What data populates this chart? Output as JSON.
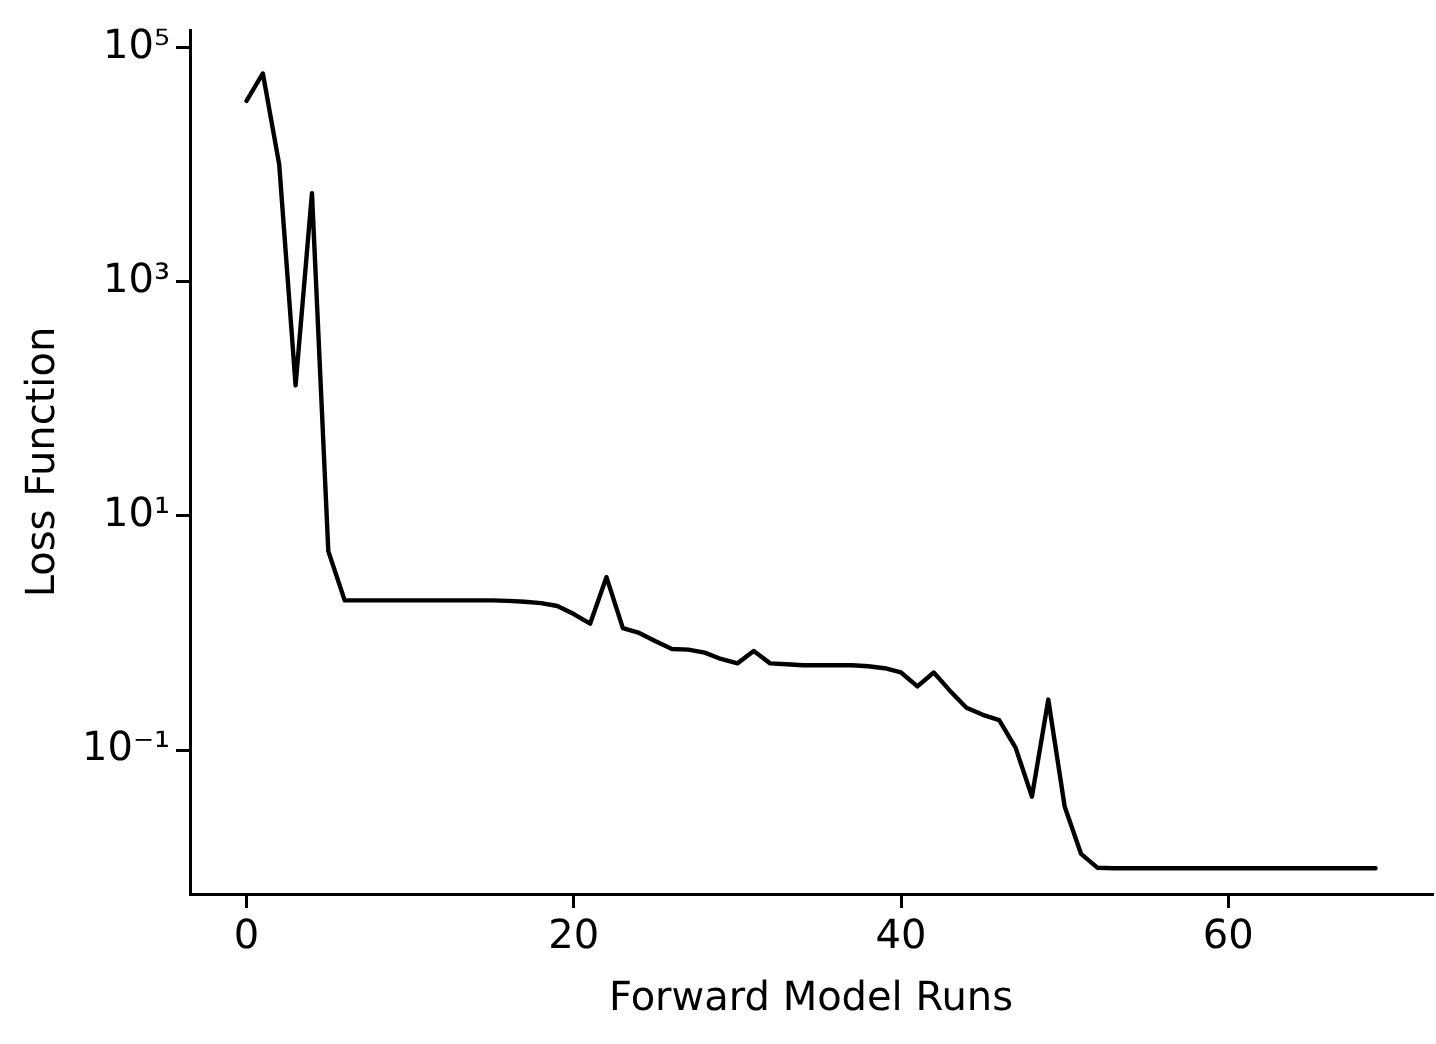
{
  "chart_data": {
    "type": "line",
    "xlabel": "Forward Model Runs",
    "ylabel": "Loss Function",
    "log": "y",
    "marker": "none",
    "line_style": "solid",
    "x": [
      0,
      1,
      2,
      3,
      4,
      5,
      6,
      7,
      8,
      9,
      10,
      11,
      12,
      13,
      14,
      15,
      16,
      17,
      18,
      19,
      20,
      21,
      22,
      23,
      24,
      25,
      26,
      27,
      28,
      29,
      30,
      31,
      32,
      33,
      34,
      35,
      36,
      37,
      38,
      39,
      40,
      41,
      42,
      43,
      44,
      45,
      46,
      47,
      48,
      49,
      50,
      51,
      52,
      53,
      54,
      55,
      56,
      57,
      58,
      59,
      60,
      61,
      62,
      63,
      64,
      65,
      66,
      67,
      68,
      69
    ],
    "series": [
      {
        "color": "#000000",
        "values": [
          35000,
          60000,
          10000,
          130,
          5700,
          5,
          1.9,
          1.9,
          1.9,
          1.9,
          1.9,
          1.9,
          1.9,
          1.9,
          1.9,
          1.9,
          1.88,
          1.85,
          1.8,
          1.7,
          1.45,
          1.2,
          3.0,
          1.1,
          1.0,
          0.85,
          0.73,
          0.72,
          0.68,
          0.6,
          0.55,
          0.7,
          0.55,
          0.54,
          0.53,
          0.53,
          0.53,
          0.53,
          0.52,
          0.5,
          0.46,
          0.35,
          0.46,
          0.32,
          0.23,
          0.2,
          0.18,
          0.105,
          0.04,
          0.27,
          0.033,
          0.013,
          0.0099,
          0.0098,
          0.0098,
          0.0098,
          0.0098,
          0.0098,
          0.0098,
          0.0098,
          0.0098,
          0.0098,
          0.0098,
          0.0098,
          0.0098,
          0.0098,
          0.0098,
          0.0098,
          0.0098,
          0.0098
        ]
      }
    ],
    "xlim": [
      -3.45,
      72.45
    ],
    "xticks": [
      0,
      20,
      40,
      60
    ],
    "ylim": [
      0.0059,
      141000
    ],
    "yticks": [
      {
        "value": 0.1,
        "label": "10⁻¹"
      },
      {
        "value": 10,
        "label": "10¹"
      },
      {
        "value": 1000,
        "label": "10³"
      },
      {
        "value": 100000,
        "label": "10⁵"
      }
    ],
    "grid": false,
    "legend": false
  }
}
